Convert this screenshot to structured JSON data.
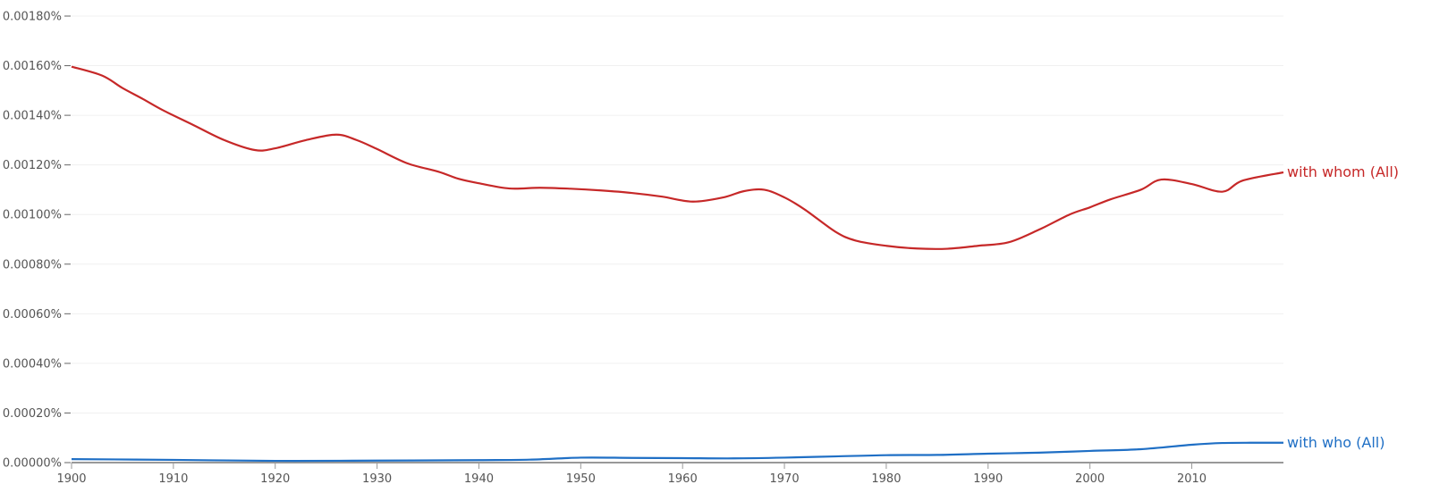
{
  "chart_data": {
    "type": "line",
    "title": "",
    "xlabel": "",
    "ylabel": "",
    "xlim": [
      1900,
      2019
    ],
    "ylim": [
      0,
      0.0018
    ],
    "grid": true,
    "legend": "inline-right-labels",
    "x_ticks": [
      1900,
      1910,
      1920,
      1930,
      1940,
      1950,
      1960,
      1970,
      1980,
      1990,
      2000,
      2010
    ],
    "y_ticks": [
      0,
      0.0002,
      0.0004,
      0.0006,
      0.0008,
      0.001,
      0.0012,
      0.0014,
      0.0016,
      0.0018
    ],
    "y_tick_labels": [
      "0.00000%",
      "0.00020%",
      "0.00040%",
      "0.00060%",
      "0.00080%",
      "0.00100%",
      "0.00120%",
      "0.00140%",
      "0.00160%",
      "0.00180%"
    ],
    "series": [
      {
        "name": "with whom (All)",
        "color": "#c62828",
        "x": [
          1900,
          1903,
          1905,
          1907,
          1909,
          1912,
          1915,
          1918,
          1920,
          1923,
          1926,
          1928,
          1930,
          1933,
          1936,
          1938,
          1940,
          1943,
          1946,
          1949,
          1952,
          1955,
          1958,
          1961,
          1964,
          1966,
          1968,
          1970,
          1972,
          1975,
          1977,
          1980,
          1983,
          1986,
          1989,
          1992,
          1995,
          1998,
          2000,
          2002,
          2005,
          2007,
          2010,
          2013,
          2015,
          2019
        ],
        "y": [
          0.001596,
          0.00156,
          0.00151,
          0.001466,
          0.00142,
          0.00136,
          0.0013,
          0.00126,
          0.001267,
          0.0013,
          0.001322,
          0.0013,
          0.001264,
          0.001206,
          0.001173,
          0.001144,
          0.001126,
          0.001105,
          0.001108,
          0.001104,
          0.001097,
          0.001087,
          0.001072,
          0.001052,
          0.001069,
          0.001094,
          0.0011,
          0.001069,
          0.00102,
          0.000931,
          0.000895,
          0.000874,
          0.000863,
          0.000862,
          0.000874,
          0.000888,
          0.000939,
          0.001,
          0.001029,
          0.001061,
          0.0011,
          0.001141,
          0.001123,
          0.001092,
          0.001137,
          0.00117
        ]
      },
      {
        "name": "with who (All)",
        "color": "#1f6fc5",
        "x": [
          1900,
          1910,
          1920,
          1930,
          1940,
          1945,
          1950,
          1955,
          1960,
          1965,
          1970,
          1975,
          1980,
          1985,
          1990,
          1995,
          2000,
          2005,
          2010,
          2013,
          2016,
          2019
        ],
        "y": [
          1.4e-05,
          1.1e-05,
          7e-06,
          8e-06,
          1e-05,
          1.2e-05,
          2e-05,
          1.9e-05,
          1.8e-05,
          1.7e-05,
          2e-05,
          2.5e-05,
          3e-05,
          3.1e-05,
          3.6e-05,
          4e-05,
          4.7e-05,
          5.4e-05,
          7.2e-05,
          7.9e-05,
          8e-05,
          8e-05
        ]
      }
    ]
  }
}
